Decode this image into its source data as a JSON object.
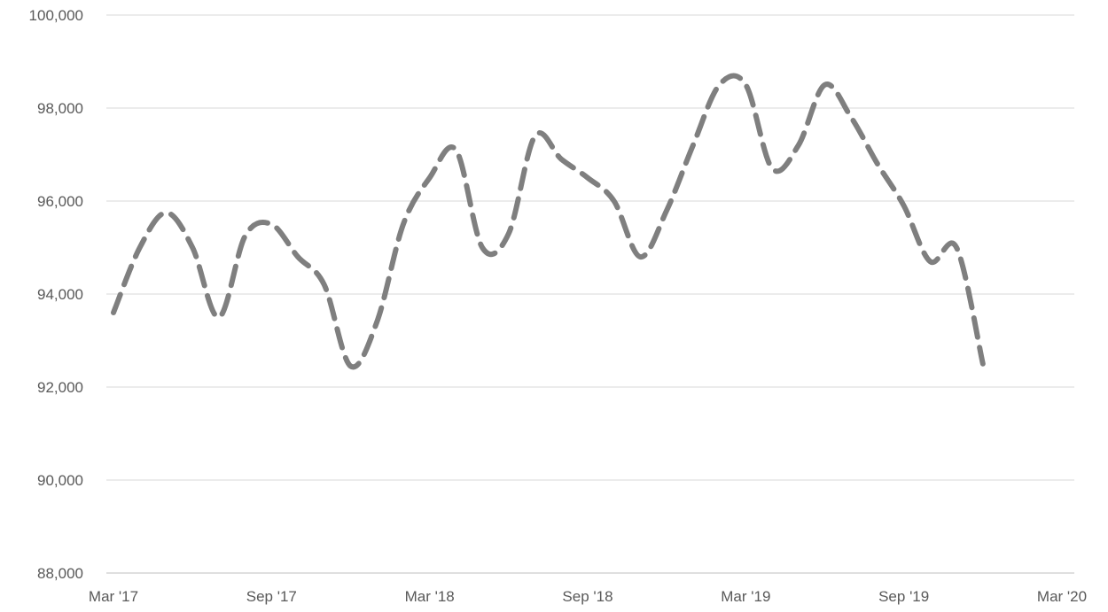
{
  "chart_data": {
    "type": "line",
    "title": "",
    "xlabel": "",
    "ylabel": "",
    "x_tick_labels": [
      "Mar '17",
      "Sep '17",
      "Mar '18",
      "Sep '18",
      "Mar '19",
      "Sep '19",
      "Mar '20"
    ],
    "y_tick_labels": [
      "88,000",
      "90,000",
      "92,000",
      "94,000",
      "96,000",
      "98,000",
      "100,000"
    ],
    "ylim": [
      88000,
      100000
    ],
    "xlim": [
      "2017-03",
      "2020-03"
    ],
    "grid": "horizontal",
    "legend": "none",
    "series": [
      {
        "line_style": "dashed",
        "color": "#7f7f7f",
        "points": [
          {
            "x": "2017-03",
            "y": 93600
          },
          {
            "x": "2017-04",
            "y": 95000
          },
          {
            "x": "2017-05",
            "y": 95750
          },
          {
            "x": "2017-06",
            "y": 95000
          },
          {
            "x": "2017-07",
            "y": 93500
          },
          {
            "x": "2017-08",
            "y": 95250
          },
          {
            "x": "2017-09",
            "y": 95500
          },
          {
            "x": "2017-10",
            "y": 94800
          },
          {
            "x": "2017-11",
            "y": 94200
          },
          {
            "x": "2017-12",
            "y": 92450
          },
          {
            "x": "2018-01",
            "y": 93400
          },
          {
            "x": "2018-02",
            "y": 95500
          },
          {
            "x": "2018-03",
            "y": 96500
          },
          {
            "x": "2018-04",
            "y": 97100
          },
          {
            "x": "2018-05",
            "y": 95000
          },
          {
            "x": "2018-06",
            "y": 95300
          },
          {
            "x": "2018-07",
            "y": 97400
          },
          {
            "x": "2018-08",
            "y": 96900
          },
          {
            "x": "2018-09",
            "y": 96500
          },
          {
            "x": "2018-10",
            "y": 96000
          },
          {
            "x": "2018-11",
            "y": 94800
          },
          {
            "x": "2018-12",
            "y": 95800
          },
          {
            "x": "2019-01",
            "y": 97200
          },
          {
            "x": "2019-02",
            "y": 98500
          },
          {
            "x": "2019-03",
            "y": 98500
          },
          {
            "x": "2019-04",
            "y": 96700
          },
          {
            "x": "2019-05",
            "y": 97200
          },
          {
            "x": "2019-06",
            "y": 98500
          },
          {
            "x": "2019-07",
            "y": 97800
          },
          {
            "x": "2019-08",
            "y": 96800
          },
          {
            "x": "2019-09",
            "y": 95900
          },
          {
            "x": "2019-10",
            "y": 94700
          },
          {
            "x": "2019-11",
            "y": 95000
          },
          {
            "x": "2019-12",
            "y": 92500
          }
        ]
      }
    ]
  }
}
